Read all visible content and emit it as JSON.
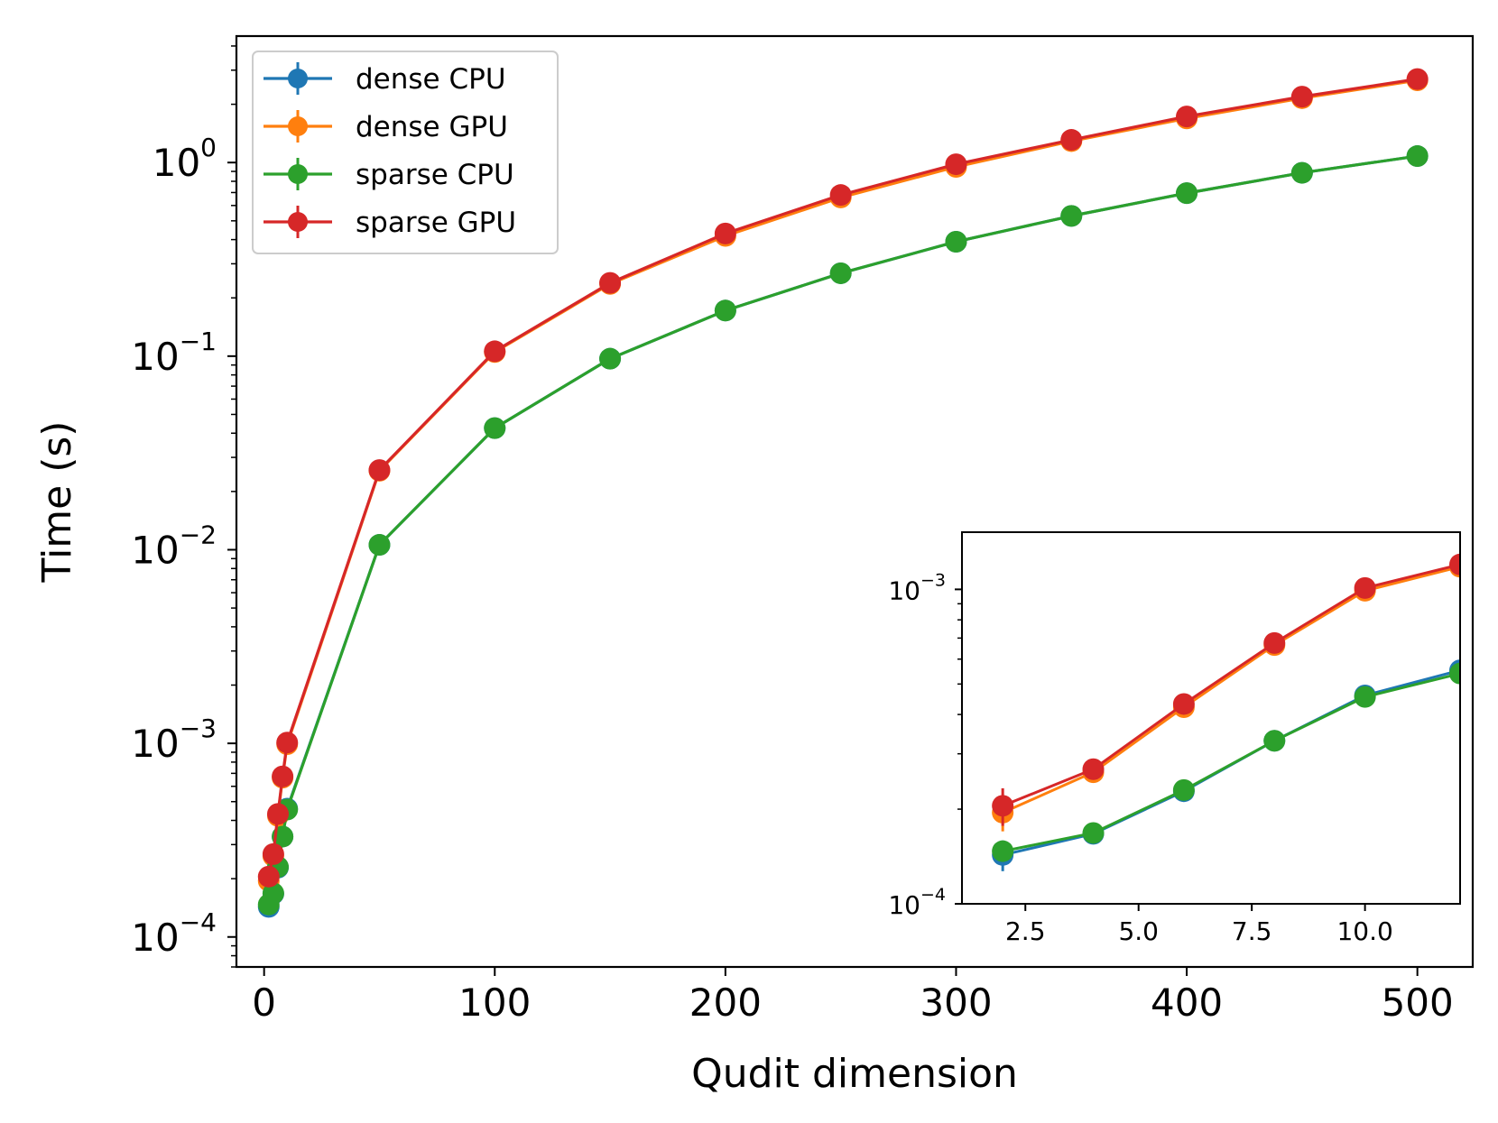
{
  "colors": {
    "dense_cpu": "#1f77b4",
    "dense_gpu": "#ff7f0e",
    "sparse_cpu": "#2ca02c",
    "sparse_gpu": "#d62728"
  },
  "chart_data": [
    {
      "id": "main",
      "type": "line",
      "xlabel": "Qudit dimension",
      "ylabel": "Time (s)",
      "yscale": "log",
      "xlim": [
        -12,
        524
      ],
      "ylim": [
        7e-05,
        4.5
      ],
      "xticks": [
        0,
        100,
        200,
        300,
        400,
        500
      ],
      "yticks": [
        {
          "base": "10",
          "exp": "−4",
          "value": 0.0001
        },
        {
          "base": "10",
          "exp": "−3",
          "value": 0.001
        },
        {
          "base": "10",
          "exp": "−2",
          "value": 0.01
        },
        {
          "base": "10",
          "exp": "−1",
          "value": 0.1
        },
        {
          "base": "10",
          "exp": "0",
          "value": 1
        }
      ],
      "legend": {
        "position": "upper-left",
        "entries": [
          "dense CPU",
          "dense GPU",
          "sparse CPU",
          "sparse GPU"
        ]
      },
      "series": [
        {
          "name": "dense CPU",
          "color": "#1f77b4",
          "x": [
            2,
            4,
            6,
            8,
            10,
            50,
            100,
            150,
            200,
            250,
            300,
            350,
            400,
            450,
            500
          ],
          "y": [
            0.000143,
            0.000167,
            0.000228,
            0.00033,
            0.00046,
            0.0106,
            0.0425,
            0.097,
            0.172,
            0.268,
            0.39,
            0.53,
            0.695,
            0.885,
            1.08
          ]
        },
        {
          "name": "dense GPU",
          "color": "#ff7f0e",
          "x": [
            2,
            4,
            6,
            8,
            10,
            50,
            100,
            150,
            200,
            250,
            300,
            350,
            400,
            450,
            500
          ],
          "y": [
            0.000195,
            0.000262,
            0.000422,
            0.000665,
            0.00099,
            0.0256,
            0.105,
            0.236,
            0.418,
            0.66,
            0.95,
            1.29,
            1.69,
            2.15,
            2.66
          ]
        },
        {
          "name": "sparse CPU",
          "color": "#2ca02c",
          "x": [
            2,
            4,
            6,
            8,
            10,
            50,
            100,
            150,
            200,
            250,
            300,
            350,
            400,
            450,
            500
          ],
          "y": [
            0.000147,
            0.000168,
            0.00023,
            0.00033,
            0.000455,
            0.0106,
            0.0425,
            0.097,
            0.172,
            0.268,
            0.39,
            0.53,
            0.695,
            0.885,
            1.08
          ]
        },
        {
          "name": "sparse GPU",
          "color": "#d62728",
          "x": [
            2,
            4,
            6,
            8,
            10,
            50,
            100,
            150,
            200,
            250,
            300,
            350,
            400,
            450,
            500
          ],
          "y": [
            0.000205,
            0.000268,
            0.000432,
            0.000675,
            0.00101,
            0.0258,
            0.106,
            0.239,
            0.43,
            0.68,
            0.98,
            1.31,
            1.73,
            2.19,
            2.7
          ]
        }
      ]
    },
    {
      "id": "inset",
      "type": "line",
      "yscale": "log",
      "xlim": [
        1.1,
        12.1
      ],
      "ylim": [
        0.0001,
        0.00152
      ],
      "xticks": [
        2.5,
        5.0,
        7.5,
        10.0
      ],
      "xtick_labels": [
        "2.5",
        "5.0",
        "7.5",
        "10.0"
      ],
      "yticks": [
        {
          "base": "10",
          "exp": "−4",
          "value": 0.0001
        },
        {
          "base": "10",
          "exp": "−3",
          "value": 0.001
        }
      ],
      "series": [
        {
          "name": "dense CPU",
          "color": "#1f77b4",
          "x": [
            2,
            4,
            6,
            8,
            10,
            12.1
          ],
          "y": [
            0.000143,
            0.000167,
            0.000228,
            0.00033,
            0.00046,
            0.000553
          ],
          "err": [
            1.6e-05,
            0,
            0,
            0,
            0,
            0
          ]
        },
        {
          "name": "dense GPU",
          "color": "#ff7f0e",
          "x": [
            2,
            4,
            6,
            8,
            10,
            12.1
          ],
          "y": [
            0.000195,
            0.000262,
            0.000422,
            0.000665,
            0.00099,
            0.00118
          ],
          "err": [
            2.5e-05,
            0,
            0,
            0,
            0,
            0
          ]
        },
        {
          "name": "sparse CPU",
          "color": "#2ca02c",
          "x": [
            2,
            4,
            6,
            8,
            10,
            12.1
          ],
          "y": [
            0.000147,
            0.000168,
            0.00023,
            0.00033,
            0.000455,
            0.00054
          ],
          "err": [
            0,
            0,
            0,
            0,
            0,
            0
          ]
        },
        {
          "name": "sparse GPU",
          "color": "#d62728",
          "x": [
            2,
            4,
            6,
            8,
            10,
            12.1
          ],
          "y": [
            0.000205,
            0.000268,
            0.000432,
            0.000675,
            0.00101,
            0.0012
          ],
          "err": [
            2.8e-05,
            0,
            0,
            0,
            0,
            0
          ]
        }
      ]
    }
  ]
}
